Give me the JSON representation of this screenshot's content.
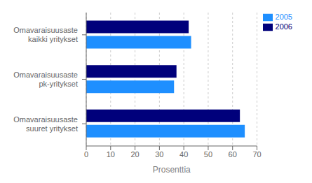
{
  "chart_data": {
    "type": "bar",
    "orientation": "horizontal",
    "categories": [
      "Omavaraisuusaste\nkaikki yritykset",
      "Omavaraisuusaste\npk-yritykset",
      "Omavaraisuusaste\nsuuret yritykset"
    ],
    "series": [
      {
        "name": "2006",
        "color": "#00007B",
        "values": [
          42,
          37,
          63
        ]
      },
      {
        "name": "2005",
        "color": "#1E8FFF",
        "values": [
          43,
          36,
          65
        ]
      }
    ],
    "xlabel": "Prosenttia",
    "xlim": [
      0,
      70
    ],
    "xticks": [
      0,
      10,
      20,
      30,
      40,
      50,
      60,
      70
    ],
    "grid": true,
    "legend": "upper right"
  }
}
